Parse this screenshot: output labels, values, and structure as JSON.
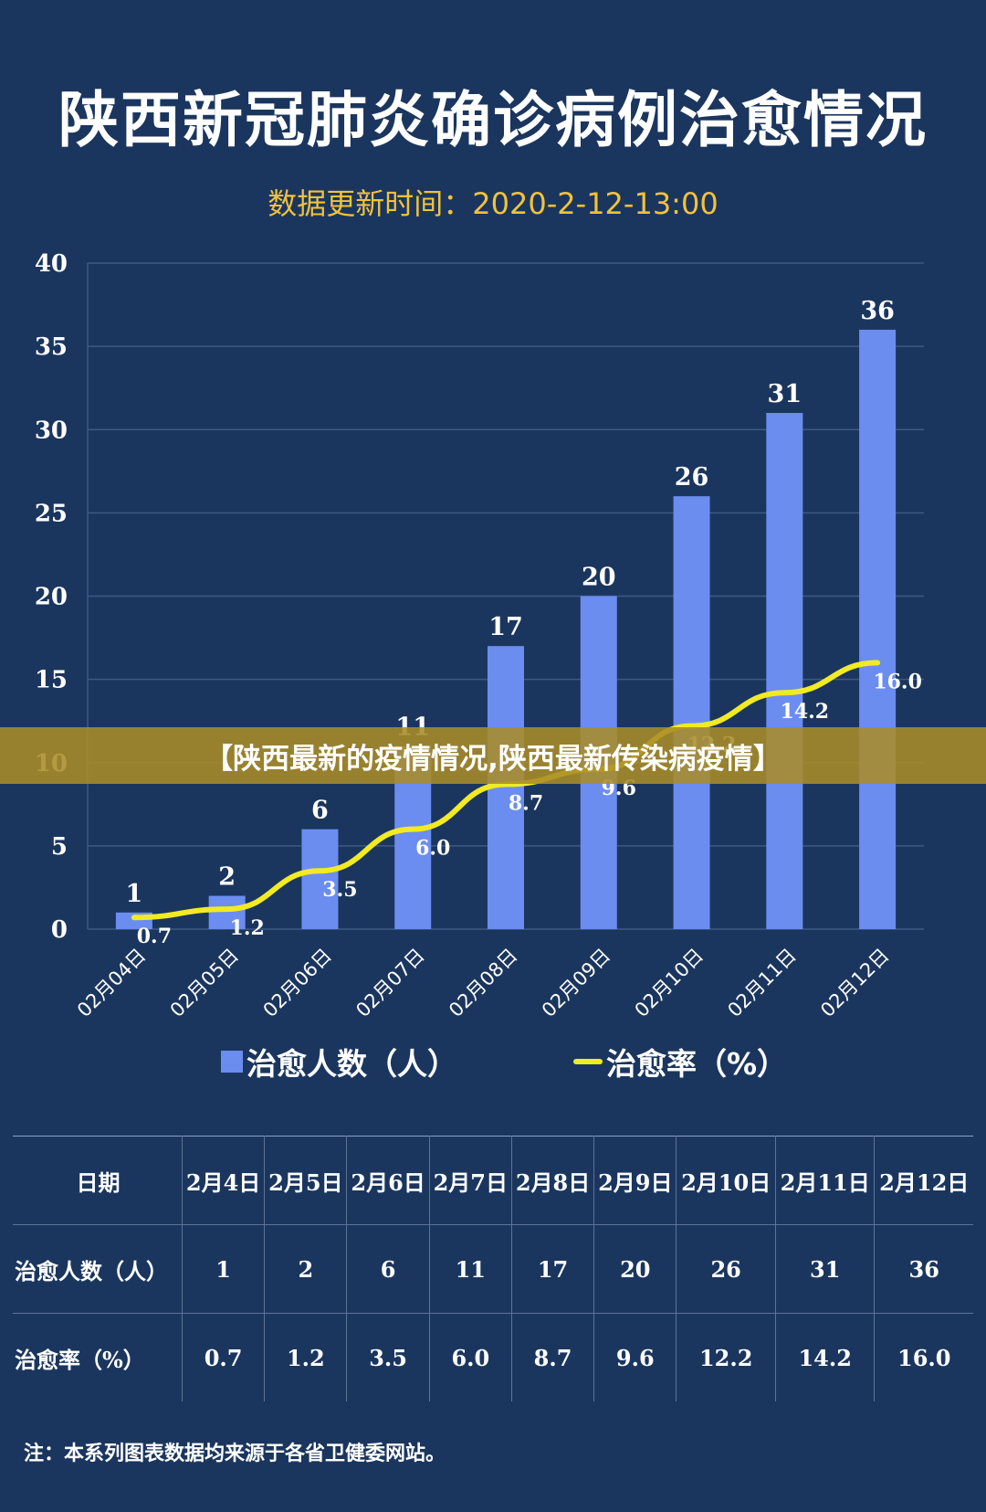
{
  "title": "陕西新冠肺炎确诊病例治愈情况",
  "subtitle": "数据更新时间：2020-2-12-13:00",
  "banner": "【陕西最新的疫情情况,陕西最新传染病疫情】",
  "chart_data": {
    "type": "bar",
    "title": "陕西新冠肺炎确诊病例治愈情况",
    "categories": [
      "02月04日",
      "02月05日",
      "02月06日",
      "02月07日",
      "02月08日",
      "02月09日",
      "02月10日",
      "02月11日",
      "02月12日"
    ],
    "ylim": [
      0,
      40
    ],
    "yticks": [
      0,
      5,
      10,
      15,
      20,
      25,
      30,
      35,
      40
    ],
    "grid": true,
    "legend_position": "bottom",
    "series": [
      {
        "name": "治愈人数（人）",
        "type": "bar",
        "color": "#6b8df0",
        "values": [
          1,
          2,
          6,
          11,
          17,
          20,
          26,
          31,
          36
        ]
      },
      {
        "name": "治愈率（%）",
        "type": "line",
        "color": "#f2ea22",
        "values": [
          0.7,
          1.2,
          3.5,
          6.0,
          8.7,
          9.6,
          12.2,
          14.2,
          16.0
        ]
      }
    ],
    "line_labels": [
      "0.7",
      "1.2",
      "3.5",
      "6.0",
      "8.7",
      "9.6",
      "12.2",
      "14.2",
      "16.0"
    ]
  },
  "legend": {
    "bar_label": "治愈人数（人）",
    "line_label": "治愈率（%）"
  },
  "table": {
    "header": [
      "日期",
      "2月4日",
      "2月5日",
      "2月6日",
      "2月7日",
      "2月8日",
      "2月9日",
      "2月10日",
      "2月11日",
      "2月12日"
    ],
    "rows": [
      [
        "治愈人数（人）",
        "1",
        "2",
        "6",
        "11",
        "17",
        "20",
        "26",
        "31",
        "36"
      ],
      [
        "治愈率（%）",
        "0.7",
        "1.2",
        "3.5",
        "6.0",
        "8.7",
        "9.6",
        "12.2",
        "14.2",
        "16.0"
      ]
    ]
  },
  "footnote": "注：本系列图表数据均来源于各省卫健委网站。",
  "colors": {
    "background": "#1b365e",
    "bar": "#6b8df0",
    "line": "#f2ea22",
    "subtitle": "#f2c23a"
  }
}
